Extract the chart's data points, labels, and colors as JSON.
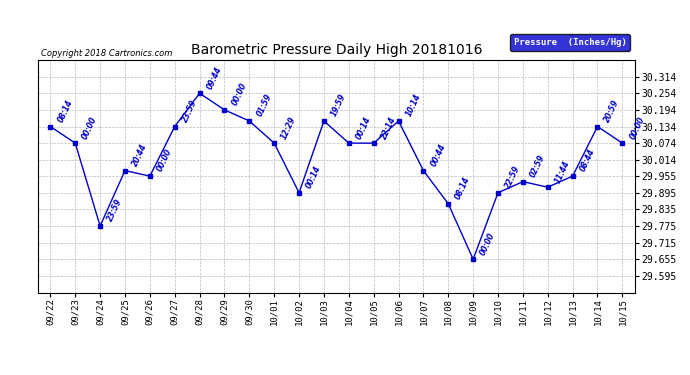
{
  "title": "Barometric Pressure Daily High 20181016",
  "copyright": "Copyright 2018 Cartronics.com",
  "legend_label": "Pressure  (Inches/Hg)",
  "xlabels": [
    "09/22",
    "09/23",
    "09/24",
    "09/25",
    "09/26",
    "09/27",
    "09/28",
    "09/29",
    "09/30",
    "10/01",
    "10/02",
    "10/03",
    "10/04",
    "10/05",
    "10/06",
    "10/07",
    "10/08",
    "10/09",
    "10/10",
    "10/11",
    "10/12",
    "10/13",
    "10/14",
    "10/15"
  ],
  "x_indices": [
    0,
    1,
    2,
    3,
    4,
    5,
    6,
    7,
    8,
    9,
    10,
    11,
    12,
    13,
    14,
    15,
    16,
    17,
    18,
    19,
    20,
    21,
    22,
    23
  ],
  "y_values": [
    30.134,
    30.074,
    29.775,
    29.975,
    29.955,
    30.134,
    30.254,
    30.194,
    30.154,
    30.074,
    29.895,
    30.154,
    30.074,
    30.074,
    30.154,
    29.975,
    29.855,
    29.655,
    29.895,
    29.935,
    29.915,
    29.955,
    30.134,
    30.074
  ],
  "point_labels": [
    "08:14",
    "00:00",
    "23:59",
    "20:44",
    "00:00",
    "23:59",
    "09:44",
    "00:00",
    "01:59",
    "12:29",
    "00:14",
    "19:59",
    "00:14",
    "22:14",
    "10:14",
    "00:44",
    "08:14",
    "00:00",
    "22:59",
    "02:59",
    "11:44",
    "08:44",
    "20:59",
    "00:00"
  ],
  "ylim_min": 29.535,
  "ylim_max": 30.374,
  "yticks": [
    29.595,
    29.655,
    29.715,
    29.775,
    29.835,
    29.895,
    29.955,
    30.014,
    30.074,
    30.134,
    30.194,
    30.254,
    30.314
  ],
  "line_color": "#0000cc",
  "marker_color": "#0000cc",
  "label_color": "#0000cc",
  "background_color": "#ffffff",
  "grid_color": "#bbbbbb",
  "title_color": "#000000",
  "copyright_color": "#000000",
  "legend_bg": "#0000cc",
  "legend_text": "#ffffff"
}
